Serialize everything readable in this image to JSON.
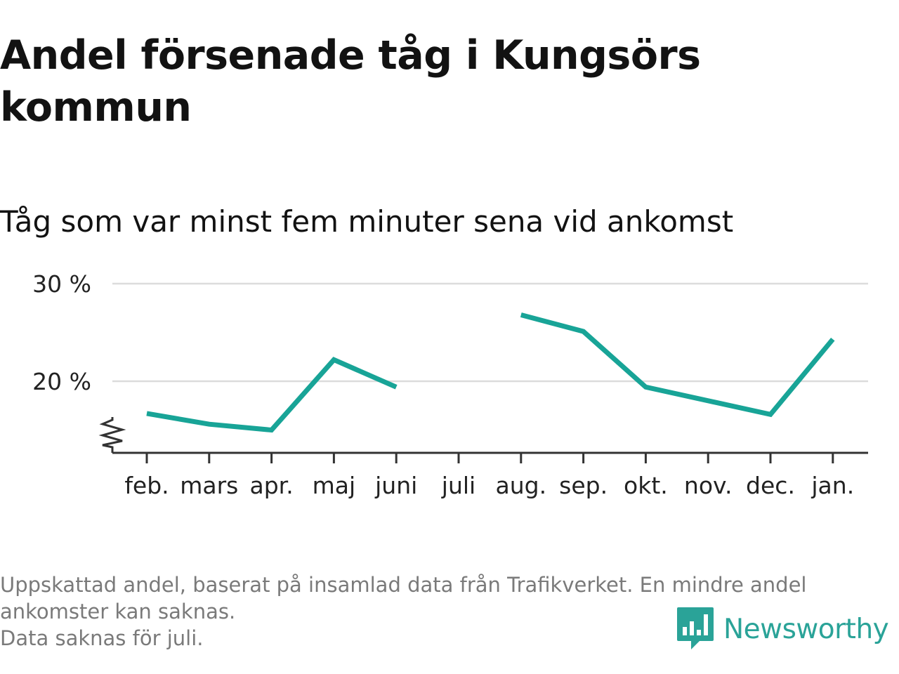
{
  "title": "Andel försenade tåg i Kungsörs kommun",
  "subtitle": "Tåg som var minst fem minuter sena vid ankomst",
  "footer": {
    "note_line1": "Uppskattad andel, baserat på insamlad data från Trafikverket. En mindre andel ankomster kan saknas.",
    "note_line2": "Data saknas för juli."
  },
  "logo": {
    "text": "Newsworthy",
    "icon": "newsworthy-logo-icon",
    "color": "#2aa398"
  },
  "chart_data": {
    "type": "line",
    "categories": [
      "feb.",
      "mars",
      "apr.",
      "maj",
      "juni",
      "juli",
      "aug.",
      "sep.",
      "okt.",
      "nov.",
      "dec.",
      "jan."
    ],
    "series": [
      {
        "values": [
          16.7,
          15.6,
          15.0,
          22.2,
          19.4,
          null,
          26.8,
          25.1,
          19.4,
          18.0,
          16.6,
          24.3
        ],
        "color": "#18a497"
      }
    ],
    "yticks": [
      20,
      30
    ],
    "ytick_labels": [
      "20 %",
      "30 %"
    ],
    "ylim": [
      13,
      30
    ],
    "y_axis_break": true,
    "grid": true,
    "colors": {
      "line": "#18a497",
      "grid": "#dcdcdc",
      "axis": "#333333"
    }
  }
}
